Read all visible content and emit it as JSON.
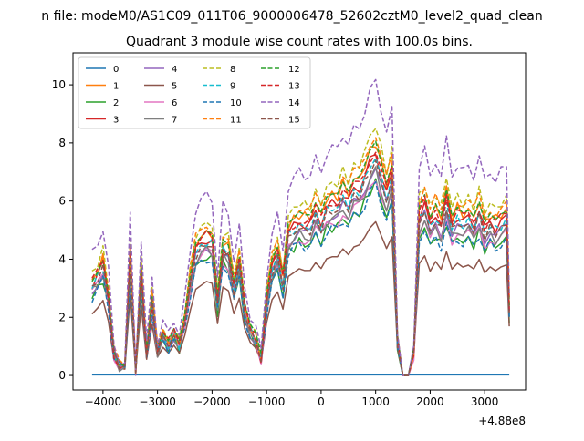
{
  "figure": {
    "suptitle": "n file: modeM0/AS1C09_011T06_9000006478_52602cztM0_level2_quad_clean",
    "title": "Quadrant 3 module wise count rates with 100.0s bins.",
    "x_offset_label": "+4.88e8"
  },
  "chart_data": {
    "type": "line",
    "title": "Quadrant 3 module wise count rates with 100.0s bins.",
    "xlabel": "",
    "ylabel": "",
    "x_offset": 488000000,
    "xlim": [
      -4550,
      3750
    ],
    "ylim": [
      -0.5,
      11.1
    ],
    "xticks": [
      -4000,
      -3000,
      -2000,
      -1000,
      0,
      1000,
      2000,
      3000
    ],
    "xtick_labels": [
      "−4000",
      "−3000",
      "−2000",
      "−1000",
      "0",
      "1000",
      "2000",
      "3000"
    ],
    "yticks": [
      0,
      2,
      4,
      6,
      8,
      10
    ],
    "ytick_labels": [
      "0",
      "2",
      "4",
      "6",
      "8",
      "10"
    ],
    "grid": false,
    "legend_position": "top-left",
    "legend_columns": 4,
    "x": [
      -4200,
      -3400,
      -3300,
      -3200,
      -3100,
      -3000,
      -2900,
      -2800,
      -2700,
      -2600,
      -2500,
      -2400,
      -2300,
      -2200,
      -2100,
      -2000,
      -1900,
      -1800,
      -1700,
      -1600,
      -1500,
      -1400,
      -1300,
      -1200,
      -1100,
      -1000,
      -900,
      -800,
      -700,
      -600,
      -500,
      -400,
      -300,
      -200,
      -100,
      0,
      100,
      200,
      300,
      400,
      500,
      600,
      700,
      800,
      900,
      1000,
      1100,
      1200,
      1300,
      1400,
      1500,
      1600,
      1700,
      1800,
      1900,
      2000,
      2100,
      2200,
      2300,
      2400,
      2500,
      2600,
      2700,
      2800,
      2900,
      3000,
      3100,
      3200,
      3300,
      3400,
      3450
    ],
    "profile": [
      3.2,
      0.2,
      3.6,
      0.8,
      2.6,
      0.9,
      1.4,
      1.1,
      1.5,
      1.1,
      2.0,
      3.3,
      4.4,
      4.6,
      4.8,
      4.7,
      2.6,
      4.5,
      4.3,
      3.1,
      3.9,
      2.3,
      1.6,
      1.3,
      0.6,
      2.6,
      3.8,
      4.2,
      3.3,
      5.0,
      5.2,
      5.4,
      5.3,
      5.3,
      5.7,
      5.4,
      5.9,
      6.0,
      6.0,
      6.4,
      6.1,
      6.5,
      6.6,
      7.0,
      7.5,
      7.8,
      7.1,
      6.4,
      7.0,
      1.2,
      0,
      0,
      0.8,
      5.6,
      6.0,
      5.2,
      5.7,
      5.3,
      6.2,
      5.3,
      5.6,
      5.4,
      5.5,
      5.3,
      5.8,
      5.1,
      5.4,
      5.2,
      5.4,
      5.5,
      2.3
    ],
    "profile_prefix_x": [
      -4200,
      -4100,
      -4000,
      -3900,
      -3800,
      -3700,
      -3600,
      -3500
    ],
    "profile_prefix": [
      3.2,
      3.5,
      3.9,
      2.8,
      0.8,
      0.35,
      0.3,
      4.2
    ],
    "series": [
      {
        "name": "0",
        "color": "#1f77b4",
        "style": "solid",
        "scale": 0,
        "constant": 0.02
      },
      {
        "name": "1",
        "color": "#ff7f0e",
        "style": "solid",
        "scale": 1.03
      },
      {
        "name": "2",
        "color": "#2ca02c",
        "style": "solid",
        "scale": 0.85
      },
      {
        "name": "3",
        "color": "#d62728",
        "style": "solid",
        "scale": 0.98
      },
      {
        "name": "4",
        "color": "#9467bd",
        "style": "solid",
        "scale": 0.92
      },
      {
        "name": "5",
        "color": "#8c564b",
        "style": "solid",
        "scale": 0.66
      },
      {
        "name": "6",
        "color": "#e377c2",
        "style": "solid",
        "scale": 0.88
      },
      {
        "name": "7",
        "color": "#7f7f7f",
        "style": "solid",
        "scale": 0.9
      },
      {
        "name": "8",
        "color": "#bcbd22",
        "style": "dashed",
        "scale": 1.1
      },
      {
        "name": "9",
        "color": "#17becf",
        "style": "dashed",
        "scale": 0.96
      },
      {
        "name": "10",
        "color": "#1f77b4",
        "style": "dashed",
        "scale": 0.84
      },
      {
        "name": "11",
        "color": "#ff7f0e",
        "style": "dashed",
        "scale": 1.07
      },
      {
        "name": "12",
        "color": "#2ca02c",
        "style": "dashed",
        "scale": 1.01
      },
      {
        "name": "13",
        "color": "#d62728",
        "style": "dashed",
        "scale": 1.0
      },
      {
        "name": "14",
        "color": "#9467bd",
        "style": "dashed",
        "scale": 1.3
      },
      {
        "name": "15",
        "color": "#8c564b",
        "style": "dashed",
        "scale": 0.94
      }
    ]
  }
}
